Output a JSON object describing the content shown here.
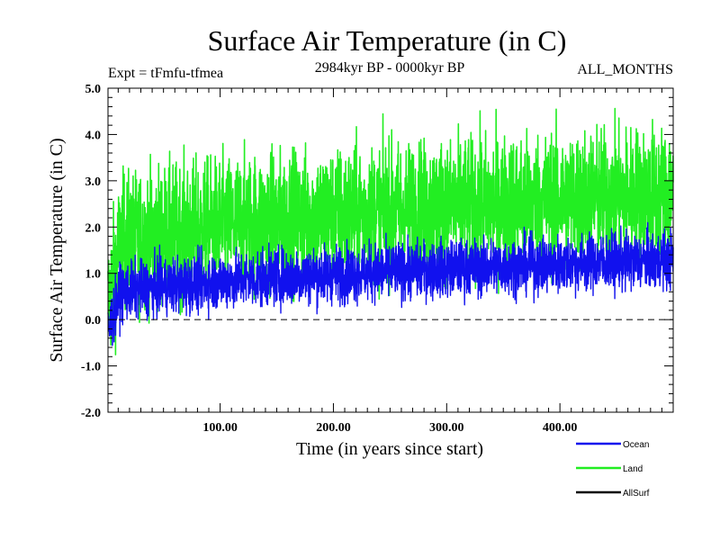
{
  "chart_data": {
    "type": "line",
    "title": "Surface Air Temperature (in C)",
    "experiment_label": "Expt = tFmfu-tfmea",
    "period_label": "2984kyr BP - 0000kyr BP",
    "months_label": "ALL_MONTHS",
    "xlabel": "Time (in years since start)",
    "ylabel": "Surface Air Temperature (in C)",
    "xlim": [
      1,
      500
    ],
    "ylim": [
      -2.0,
      5.0
    ],
    "x_ticks": [
      100,
      200,
      300,
      400
    ],
    "x_tick_labels": [
      "100.00",
      "200.00",
      "300.00",
      "400.00"
    ],
    "y_ticks": [
      -2.0,
      -1.0,
      0.0,
      1.0,
      2.0,
      3.0,
      4.0,
      5.0
    ],
    "y_tick_labels": [
      "-2.0",
      "-1.0",
      "0.0",
      "1.0",
      "2.0",
      "3.0",
      "4.0",
      "5.0"
    ],
    "reference_line": {
      "y": 0.0,
      "style": "dashed"
    },
    "series": [
      {
        "name": "Land",
        "color": "#22ee22",
        "description": "monthly land-mean anomaly, noisy",
        "trend_start": 1.6,
        "trend_end": 2.75,
        "spread": 1.3
      },
      {
        "name": "Ocean",
        "color": "#1111ee",
        "description": "monthly ocean-mean anomaly, noisy",
        "trend_start": 0.55,
        "trend_end": 1.3,
        "spread": 0.55
      },
      {
        "name": "AllSurf",
        "color": "#000000",
        "description": "global mean (legend only)"
      }
    ],
    "legend": {
      "placement": "bottom-right",
      "entries": [
        {
          "label": "Ocean",
          "color": "#1111ee"
        },
        {
          "label": "Land",
          "color": "#22ee22"
        },
        {
          "label": "AllSurf",
          "color": "#000000"
        }
      ]
    }
  }
}
